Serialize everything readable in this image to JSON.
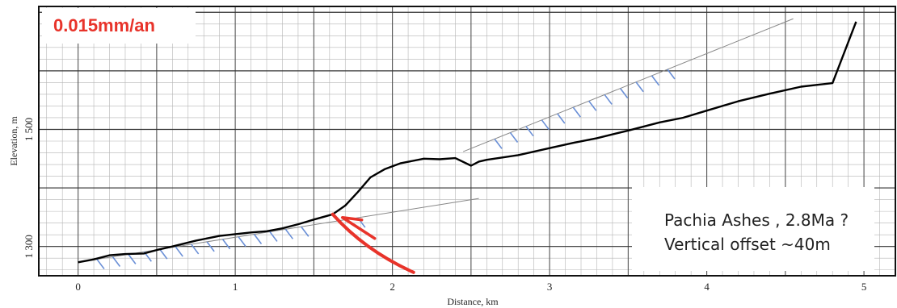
{
  "chart_data": {
    "type": "line",
    "xlabel": "Distance, km",
    "ylabel": "Elevation, m",
    "xlim": [
      -0.25,
      5.2
    ],
    "ylim": [
      1250,
      1710
    ],
    "x_ticks": [
      {
        "value": 0,
        "label": "0"
      },
      {
        "value": 1,
        "label": "1"
      },
      {
        "value": 2,
        "label": "2"
      },
      {
        "value": 3,
        "label": "3"
      },
      {
        "value": 4,
        "label": "4"
      },
      {
        "value": 5,
        "label": "5"
      }
    ],
    "y_ticks": [
      {
        "value": 1300,
        "label": "1 300"
      },
      {
        "value": 1500,
        "label": "1 500"
      }
    ],
    "grid": true,
    "series": [
      {
        "color": "#000000",
        "x": [
          0,
          0.1,
          0.2,
          0.3,
          0.42,
          0.5,
          0.6,
          0.75,
          0.9,
          1.0,
          1.1,
          1.2,
          1.3,
          1.4,
          1.5,
          1.62,
          1.7,
          1.78,
          1.86,
          1.95,
          2.05,
          2.2,
          2.3,
          2.4,
          2.5,
          2.55,
          2.6,
          2.7,
          2.8,
          2.9,
          3.0,
          3.15,
          3.3,
          3.5,
          3.7,
          3.85,
          4.0,
          4.2,
          4.4,
          4.6,
          4.8,
          4.95
        ],
        "y": [
          1273,
          1278,
          1285,
          1287,
          1288,
          1294,
          1300,
          1310,
          1318,
          1321,
          1324,
          1326,
          1331,
          1338,
          1346,
          1355,
          1370,
          1393,
          1418,
          1432,
          1442,
          1450,
          1449,
          1451,
          1438,
          1445,
          1448,
          1452,
          1456,
          1462,
          1468,
          1477,
          1485,
          1498,
          1512,
          1520,
          1532,
          1548,
          1561,
          1573,
          1579,
          1684
        ]
      }
    ],
    "trend_lines": [
      {
        "color": "#888888",
        "x": [
          0,
          2.55
        ],
        "y": [
          1273,
          1382
        ]
      },
      {
        "color": "#888888",
        "x": [
          2.45,
          4.55
        ],
        "y": [
          1462,
          1689
        ]
      }
    ],
    "annotations": {
      "rate": "0.015mm/an",
      "note_line1": "Pachia Ashes , 2.8Ma ?",
      "note_line2": "Vertical offset ~40m"
    }
  },
  "colors": {
    "profile": "#000000",
    "surface_ticks": "#6a8fd6",
    "fault": "#e8332a",
    "grid": "#b5b5b5",
    "grid_major": "#555555"
  }
}
